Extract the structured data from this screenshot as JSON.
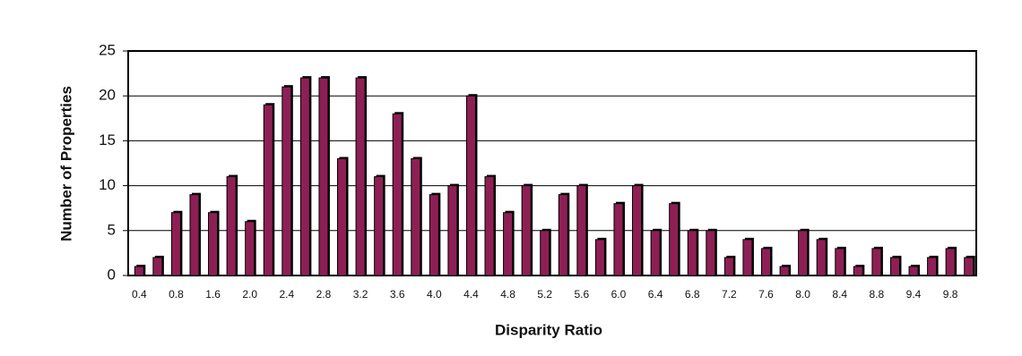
{
  "chart_data": {
    "type": "bar",
    "x_label": "Disparity Ratio",
    "y_label": "Number of Properties",
    "categories": [
      "0.4",
      null,
      "0.8",
      null,
      "1.6",
      null,
      "2.0",
      null,
      "2.4",
      null,
      "2.8",
      null,
      "3.2",
      null,
      "3.6",
      null,
      "4.0",
      null,
      "4.4",
      null,
      "4.8",
      null,
      "5.2",
      null,
      "5.6",
      null,
      "6.0",
      null,
      "6.4",
      null,
      "6.8",
      null,
      "7.2",
      null,
      "7.6",
      null,
      "8.0",
      null,
      "8.4",
      null,
      "8.8",
      null,
      "9.4",
      null,
      "9.8",
      null
    ],
    "values": [
      1,
      2,
      7,
      9,
      7,
      11,
      6,
      19,
      21,
      22,
      22,
      13,
      22,
      11,
      18,
      13,
      9,
      10,
      20,
      11,
      7,
      10,
      5,
      9,
      10,
      4,
      8,
      10,
      5,
      8,
      5,
      5,
      2,
      4,
      3,
      1,
      5,
      4,
      3,
      1,
      3,
      2,
      1,
      2,
      3,
      2
    ],
    "color": "#8e1f55",
    "ylim": [
      0,
      25
    ],
    "yticks": [
      0,
      5,
      10,
      15,
      20,
      25
    ],
    "grid": true
  }
}
